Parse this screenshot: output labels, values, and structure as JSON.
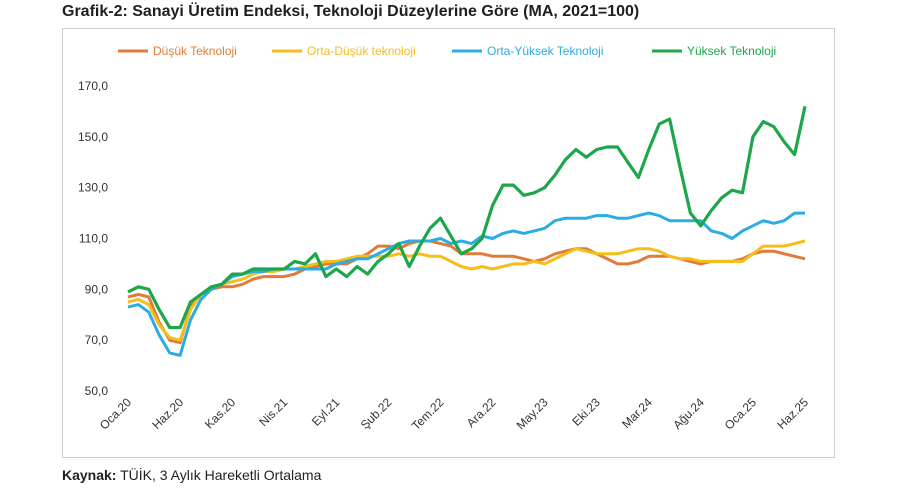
{
  "chart_data": {
    "type": "line",
    "title": "Grafik-2: Sanayi Üretim Endeksi, Teknoloji Düzeylerine Göre (MA, 2021=100)",
    "xlabel": "",
    "ylabel": "",
    "ylim": [
      50,
      170
    ],
    "yticks": [
      "50,0",
      "70,0",
      "90,0",
      "110,0",
      "130,0",
      "150,0",
      "170,0"
    ],
    "xtick_labels": [
      "Oca.20",
      "Haz.20",
      "Kas.20",
      "Nis.21",
      "Eyl.21",
      "Şub.22",
      "Tem.22",
      "Ara.22",
      "May.23",
      "Eki.23",
      "Mar.24",
      "Ağu.24",
      "Oca.25",
      "Haz.25"
    ],
    "x_range": "Oca.20 – Haz.25 (aylık)",
    "grid": false,
    "legend_position": "top",
    "series": [
      {
        "name": "Düşük Teknoloji",
        "color": "#E07B39",
        "values": [
          87,
          88,
          87,
          77,
          70,
          69,
          83,
          88,
          90,
          91,
          91,
          92,
          94,
          95,
          95,
          95,
          96,
          98,
          99,
          100,
          100,
          100,
          102,
          104,
          107,
          107,
          106,
          108,
          109,
          109,
          108,
          107,
          104,
          104,
          104,
          103,
          103,
          103,
          102,
          101,
          102,
          104,
          105,
          106,
          106,
          104,
          102,
          100,
          100,
          101,
          103,
          103,
          103,
          102,
          101,
          100,
          101,
          101,
          101,
          102,
          104,
          105,
          105,
          104,
          103,
          102
        ]
      },
      {
        "name": "Orta-Düşük teknoloji",
        "color": "#F5BE1A",
        "values": [
          85,
          86,
          84,
          76,
          71,
          70,
          82,
          88,
          90,
          92,
          93,
          94,
          96,
          97,
          97,
          98,
          98,
          99,
          100,
          101,
          101,
          102,
          103,
          103,
          103,
          103,
          104,
          103,
          104,
          103,
          103,
          101,
          99,
          98,
          99,
          98,
          99,
          100,
          100,
          101,
          100,
          102,
          104,
          106,
          105,
          104,
          104,
          104,
          105,
          106,
          106,
          105,
          103,
          102,
          102,
          101,
          101,
          101,
          101,
          101,
          104,
          107,
          107,
          107,
          108,
          109
        ]
      },
      {
        "name": "Orta-Yüksek Teknoloji",
        "color": "#2BADE3",
        "values": [
          83,
          84,
          81,
          72,
          65,
          64,
          78,
          86,
          90,
          92,
          95,
          96,
          97,
          97,
          98,
          98,
          98,
          98,
          98,
          98,
          100,
          101,
          102,
          102,
          104,
          106,
          108,
          109,
          109,
          109,
          110,
          108,
          109,
          108,
          111,
          110,
          112,
          113,
          112,
          113,
          114,
          117,
          118,
          118,
          118,
          119,
          119,
          118,
          118,
          119,
          120,
          119,
          117,
          117,
          117,
          117,
          113,
          112,
          110,
          113,
          115,
          117,
          116,
          117,
          120,
          120
        ]
      },
      {
        "name": "Yüksek Teknoloji",
        "color": "#1DA64A",
        "values": [
          89,
          91,
          90,
          82,
          75,
          75,
          85,
          88,
          91,
          92,
          96,
          96,
          98,
          98,
          98,
          98,
          101,
          100,
          104,
          95,
          98,
          95,
          99,
          96,
          101,
          104,
          108,
          99,
          107,
          114,
          118,
          111,
          104,
          106,
          110,
          123,
          131,
          131,
          127,
          128,
          130,
          135,
          141,
          145,
          142,
          145,
          146,
          146,
          140,
          134,
          145,
          155,
          157,
          138,
          120,
          115,
          121,
          126,
          129,
          128,
          150,
          156,
          154,
          148,
          143,
          162
        ]
      }
    ]
  },
  "source": {
    "label": "Kaynak:",
    "text": " TÜİK, 3 Aylık Hareketli Ortalama"
  }
}
